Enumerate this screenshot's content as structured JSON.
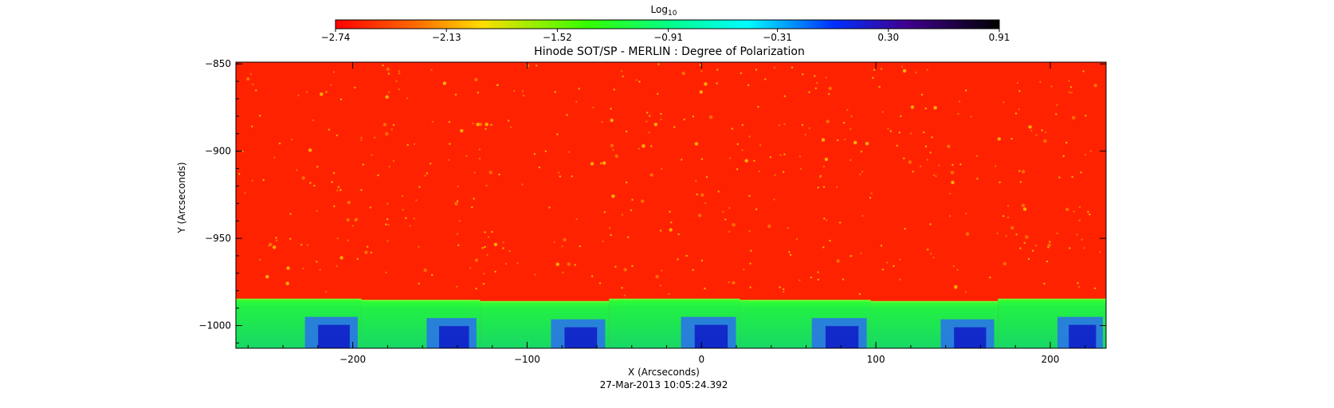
{
  "chart_data": {
    "type": "heatmap",
    "title": "Hinode SOT/SP - MERLIN : Degree of Polarization",
    "xlabel": "X (Arcseconds)",
    "ylabel": "Y (Arcseconds)",
    "timestamp": "27-Mar-2013 10:05:24.392",
    "xlim": [
      -267,
      232
    ],
    "ylim": [
      -1013,
      -849
    ],
    "x_ticks": [
      -200,
      -100,
      0,
      100,
      200
    ],
    "x_tick_labels": [
      "−200",
      "−100",
      "0",
      "100",
      "200"
    ],
    "y_ticks": [
      -850,
      -900,
      -950,
      -1000
    ],
    "y_tick_labels": [
      "−850",
      "−900",
      "−950",
      "−1000"
    ],
    "limb_y_approx": -985,
    "colorbar": {
      "label_base": "Log",
      "label_sub": "10",
      "range": [
        -2.74,
        0.91
      ],
      "tick_labels": [
        "−2.74",
        "−2.13",
        "−1.52",
        "−0.91",
        "−0.31",
        "0.30",
        "0.91"
      ],
      "ticks": [
        -2.74,
        -2.13,
        -1.52,
        -0.91,
        -0.31,
        0.3,
        0.91
      ],
      "colors": [
        "#ff0000",
        "#ff9900",
        "#ffff00",
        "#00ff00",
        "#00ffff",
        "#0000ff",
        "#500090",
        "#000000"
      ]
    },
    "panel_boundaries_x": [
      -195,
      -127,
      -53,
      22,
      97,
      170
    ],
    "colors": {
      "disk": "#ff2200",
      "bright_points": "#ffdd00",
      "limb_edge": "#33ff33",
      "off_limb": "#22ee66",
      "off_limb_deep": "#2030e0"
    }
  }
}
